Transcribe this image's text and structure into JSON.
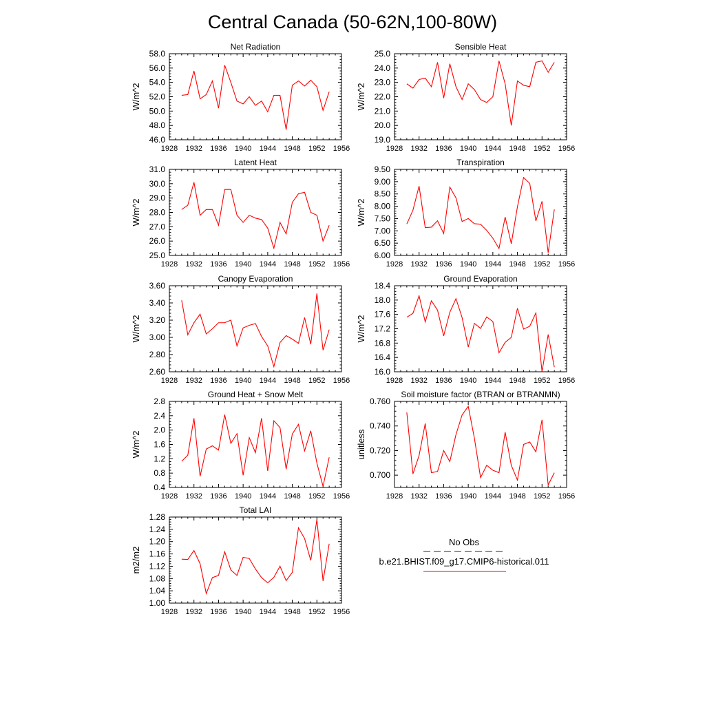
{
  "figure_title": "Central Canada (50-62N,100-80W)",
  "legend": {
    "entries": [
      {
        "label": "No Obs",
        "color": "#1a1a8c",
        "dash": true
      },
      {
        "label": "b.e21.BHIST.f09_g17.CMIP6-historical.011",
        "color": "#ff0000",
        "dash": false
      }
    ]
  },
  "colors": {
    "series": "#ff0000",
    "axes": "#000000"
  },
  "chart_data": [
    {
      "type": "line",
      "title": "Net Radiation",
      "ylabel": "W/m^2",
      "xlim": [
        1928,
        1956
      ],
      "xticks": [
        1928,
        1932,
        1936,
        1940,
        1944,
        1948,
        1952,
        1956
      ],
      "ylim": [
        46,
        58
      ],
      "yticks": [
        46,
        48,
        50,
        52,
        54,
        56,
        58
      ],
      "ydec": 1,
      "x": [
        1930,
        1931,
        1932,
        1933,
        1934,
        1935,
        1936,
        1937,
        1938,
        1939,
        1940,
        1941,
        1942,
        1943,
        1944,
        1945,
        1946,
        1947,
        1948,
        1949,
        1950,
        1951,
        1952,
        1953,
        1954
      ],
      "series": [
        {
          "values": [
            52.2,
            52.3,
            55.6,
            51.7,
            52.3,
            54.2,
            50.4,
            56.4,
            54.0,
            51.4,
            51.0,
            52.0,
            50.8,
            51.4,
            49.9,
            52.2,
            52.2,
            47.4,
            53.6,
            54.2,
            53.5,
            54.3,
            53.4,
            50.1,
            52.7
          ]
        }
      ]
    },
    {
      "type": "line",
      "title": "Sensible Heat",
      "ylabel": "W/m^2",
      "xlim": [
        1928,
        1956
      ],
      "xticks": [
        1928,
        1932,
        1936,
        1940,
        1944,
        1948,
        1952,
        1956
      ],
      "ylim": [
        19,
        25
      ],
      "yticks": [
        19,
        20,
        21,
        22,
        23,
        24,
        25
      ],
      "ydec": 1,
      "x": [
        1930,
        1931,
        1932,
        1933,
        1934,
        1935,
        1936,
        1937,
        1938,
        1939,
        1940,
        1941,
        1942,
        1943,
        1944,
        1945,
        1946,
        1947,
        1948,
        1949,
        1950,
        1951,
        1952,
        1953,
        1954
      ],
      "series": [
        {
          "values": [
            22.9,
            22.6,
            23.2,
            23.3,
            22.7,
            24.4,
            21.9,
            24.3,
            22.7,
            21.8,
            22.9,
            22.5,
            21.8,
            21.6,
            22.0,
            24.5,
            22.9,
            20.0,
            23.1,
            22.8,
            22.7,
            24.4,
            24.5,
            23.7,
            24.4
          ]
        }
      ]
    },
    {
      "type": "line",
      "title": "Latent Heat",
      "ylabel": "W/m^2",
      "xlim": [
        1928,
        1956
      ],
      "xticks": [
        1928,
        1932,
        1936,
        1940,
        1944,
        1948,
        1952,
        1956
      ],
      "ylim": [
        25,
        31
      ],
      "yticks": [
        25,
        26,
        27,
        28,
        29,
        30,
        31
      ],
      "ydec": 1,
      "x": [
        1930,
        1931,
        1932,
        1933,
        1934,
        1935,
        1936,
        1937,
        1938,
        1939,
        1940,
        1941,
        1942,
        1943,
        1944,
        1945,
        1946,
        1947,
        1948,
        1949,
        1950,
        1951,
        1952,
        1953,
        1954
      ],
      "series": [
        {
          "values": [
            28.2,
            28.5,
            30.1,
            27.8,
            28.2,
            28.2,
            27.1,
            29.6,
            29.6,
            27.8,
            27.3,
            27.8,
            27.6,
            27.5,
            26.9,
            25.5,
            27.3,
            26.5,
            28.7,
            29.3,
            29.4,
            28.0,
            27.8,
            26.0,
            27.1
          ]
        }
      ]
    },
    {
      "type": "line",
      "title": "Transpiration",
      "ylabel": "W/m^2",
      "xlim": [
        1928,
        1956
      ],
      "xticks": [
        1928,
        1932,
        1936,
        1940,
        1944,
        1948,
        1952,
        1956
      ],
      "ylim": [
        6.0,
        9.5
      ],
      "yticks": [
        6.0,
        6.5,
        7.0,
        7.5,
        8.0,
        8.5,
        9.0,
        9.5
      ],
      "ydec": 2,
      "x": [
        1930,
        1931,
        1932,
        1933,
        1934,
        1935,
        1936,
        1937,
        1938,
        1939,
        1940,
        1941,
        1942,
        1943,
        1944,
        1945,
        1946,
        1947,
        1948,
        1949,
        1950,
        1951,
        1952,
        1953,
        1954
      ],
      "series": [
        {
          "values": [
            7.28,
            7.84,
            8.82,
            7.13,
            7.15,
            7.41,
            6.89,
            8.78,
            8.34,
            7.38,
            7.5,
            7.29,
            7.27,
            7.02,
            6.7,
            6.28,
            7.56,
            6.48,
            7.98,
            9.17,
            8.93,
            7.4,
            8.2,
            6.11,
            7.87
          ]
        }
      ]
    },
    {
      "type": "line",
      "title": "Canopy Evaporation",
      "ylabel": "W/m^2",
      "xlim": [
        1928,
        1956
      ],
      "xticks": [
        1928,
        1932,
        1936,
        1940,
        1944,
        1948,
        1952,
        1956
      ],
      "ylim": [
        2.6,
        3.6
      ],
      "yticks": [
        2.6,
        2.8,
        3.0,
        3.2,
        3.4,
        3.6
      ],
      "ydec": 2,
      "x": [
        1930,
        1931,
        1932,
        1933,
        1934,
        1935,
        1936,
        1937,
        1938,
        1939,
        1940,
        1941,
        1942,
        1943,
        1944,
        1945,
        1946,
        1947,
        1948,
        1949,
        1950,
        1951,
        1952,
        1953,
        1954
      ],
      "series": [
        {
          "values": [
            3.43,
            3.03,
            3.17,
            3.27,
            3.04,
            3.1,
            3.17,
            3.17,
            3.2,
            2.9,
            3.11,
            3.14,
            3.16,
            3.01,
            2.9,
            2.66,
            2.94,
            3.02,
            2.98,
            2.93,
            3.23,
            2.92,
            3.51,
            2.85,
            3.09
          ]
        }
      ]
    },
    {
      "type": "line",
      "title": "Ground Evaporation",
      "ylabel": "W/m^2",
      "xlim": [
        1928,
        1956
      ],
      "xticks": [
        1928,
        1932,
        1936,
        1940,
        1944,
        1948,
        1952,
        1956
      ],
      "ylim": [
        16.0,
        18.4
      ],
      "yticks": [
        16.0,
        16.4,
        16.8,
        17.2,
        17.6,
        18.0,
        18.4
      ],
      "ydec": 1,
      "x": [
        1930,
        1931,
        1932,
        1933,
        1934,
        1935,
        1936,
        1937,
        1938,
        1939,
        1940,
        1941,
        1942,
        1943,
        1944,
        1945,
        1946,
        1947,
        1948,
        1949,
        1950,
        1951,
        1952,
        1953,
        1954
      ],
      "series": [
        {
          "values": [
            17.52,
            17.63,
            18.12,
            17.39,
            17.98,
            17.72,
            17.0,
            17.66,
            18.04,
            17.51,
            16.69,
            17.35,
            17.21,
            17.53,
            17.4,
            16.53,
            16.82,
            16.96,
            17.77,
            17.19,
            17.27,
            17.64,
            16.0,
            17.04,
            16.13
          ]
        }
      ]
    },
    {
      "type": "line",
      "title": "Ground Heat + Snow Melt",
      "ylabel": "W/m^2",
      "xlim": [
        1928,
        1956
      ],
      "xticks": [
        1928,
        1932,
        1936,
        1940,
        1944,
        1948,
        1952,
        1956
      ],
      "ylim": [
        0.4,
        2.8
      ],
      "yticks": [
        0.4,
        0.8,
        1.2,
        1.6,
        2.0,
        2.4,
        2.8
      ],
      "ydec": 1,
      "x": [
        1930,
        1931,
        1932,
        1933,
        1934,
        1935,
        1936,
        1937,
        1938,
        1939,
        1940,
        1941,
        1942,
        1943,
        1944,
        1945,
        1946,
        1947,
        1948,
        1949,
        1950,
        1951,
        1952,
        1953,
        1954
      ],
      "series": [
        {
          "values": [
            1.13,
            1.3,
            2.33,
            0.71,
            1.47,
            1.56,
            1.44,
            2.43,
            1.63,
            1.9,
            0.74,
            1.79,
            1.37,
            2.33,
            0.86,
            2.26,
            2.07,
            0.91,
            1.89,
            2.16,
            1.42,
            1.98,
            1.08,
            0.43,
            1.24
          ]
        }
      ]
    },
    {
      "type": "line",
      "title": "Soil moisture factor (BTRAN or BTRANMN)",
      "ylabel": "unitless",
      "xlim": [
        1928,
        1956
      ],
      "xticks": [
        1928,
        1932,
        1936,
        1940,
        1944,
        1948,
        1952,
        1956
      ],
      "ylim": [
        0.69,
        0.76
      ],
      "yticks": [
        0.7,
        0.72,
        0.74,
        0.76
      ],
      "ydec": 3,
      "x": [
        1930,
        1931,
        1932,
        1933,
        1934,
        1935,
        1936,
        1937,
        1938,
        1939,
        1940,
        1941,
        1942,
        1943,
        1944,
        1945,
        1946,
        1947,
        1948,
        1949,
        1950,
        1951,
        1952,
        1953,
        1954
      ],
      "series": [
        {
          "values": [
            0.751,
            0.701,
            0.716,
            0.742,
            0.702,
            0.703,
            0.72,
            0.711,
            0.733,
            0.749,
            0.756,
            0.73,
            0.698,
            0.708,
            0.704,
            0.702,
            0.735,
            0.708,
            0.696,
            0.725,
            0.727,
            0.719,
            0.745,
            0.692,
            0.702
          ]
        }
      ]
    },
    {
      "type": "line",
      "title": "Total LAI",
      "ylabel": "m2/m2",
      "xlim": [
        1928,
        1956
      ],
      "xticks": [
        1928,
        1932,
        1936,
        1940,
        1944,
        1948,
        1952,
        1956
      ],
      "ylim": [
        1.0,
        1.28
      ],
      "yticks": [
        1.0,
        1.04,
        1.08,
        1.12,
        1.16,
        1.2,
        1.24,
        1.28
      ],
      "ydec": 2,
      "x": [
        1930,
        1931,
        1932,
        1933,
        1934,
        1935,
        1936,
        1937,
        1938,
        1939,
        1940,
        1941,
        1942,
        1943,
        1944,
        1945,
        1946,
        1947,
        1948,
        1949,
        1950,
        1951,
        1952,
        1953,
        1954
      ],
      "series": [
        {
          "values": [
            1.143,
            1.142,
            1.171,
            1.128,
            1.031,
            1.083,
            1.09,
            1.167,
            1.108,
            1.09,
            1.149,
            1.145,
            1.111,
            1.083,
            1.066,
            1.084,
            1.12,
            1.073,
            1.1,
            1.245,
            1.21,
            1.139,
            1.272,
            1.072,
            1.193
          ]
        }
      ]
    }
  ]
}
